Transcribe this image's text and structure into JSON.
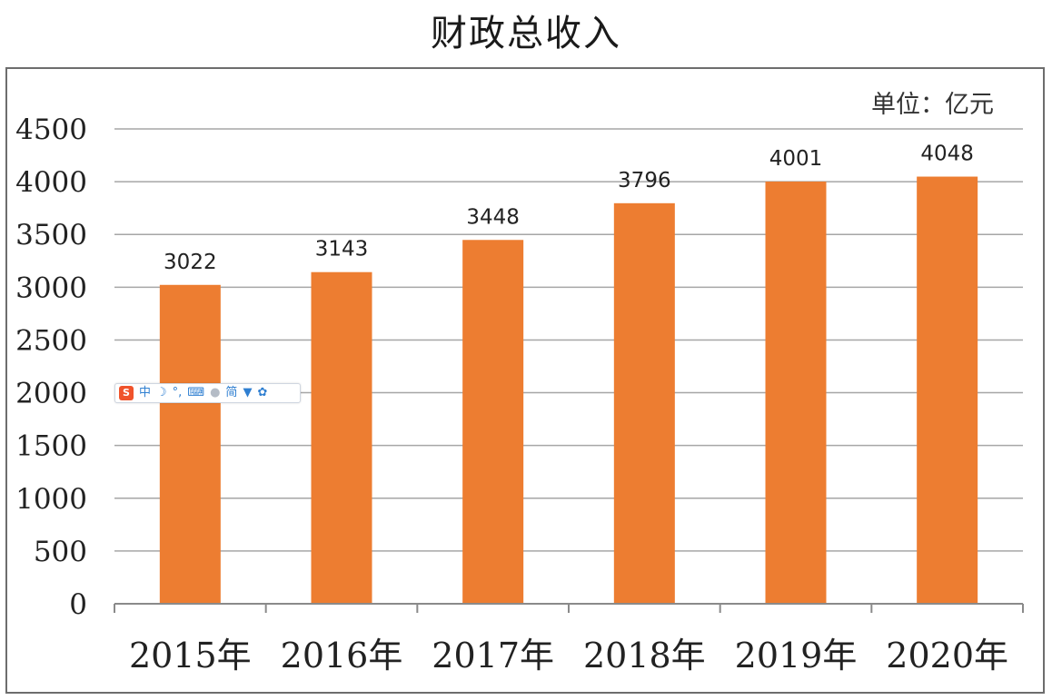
{
  "chart_data": {
    "type": "bar",
    "title": "财政总收入",
    "unit_label": "单位：亿元",
    "categories": [
      "2015年",
      "2016年",
      "2017年",
      "2018年",
      "2019年",
      "2020年"
    ],
    "values": [
      3022,
      3143,
      3448,
      3796,
      4001,
      4048
    ],
    "data_labels": [
      "3022",
      "3143",
      "3448",
      "3796",
      "4001",
      "4048"
    ],
    "ylim": [
      0,
      4500
    ],
    "yticks": [
      "0",
      "500",
      "1000",
      "1500",
      "2000",
      "2500",
      "3000",
      "3500",
      "4000",
      "4500"
    ],
    "grid": true,
    "bar_color": "#ED7D31"
  },
  "ime_toolbar": {
    "logo": "S",
    "mode": "中",
    "punct": "，",
    "traditional": "简"
  }
}
